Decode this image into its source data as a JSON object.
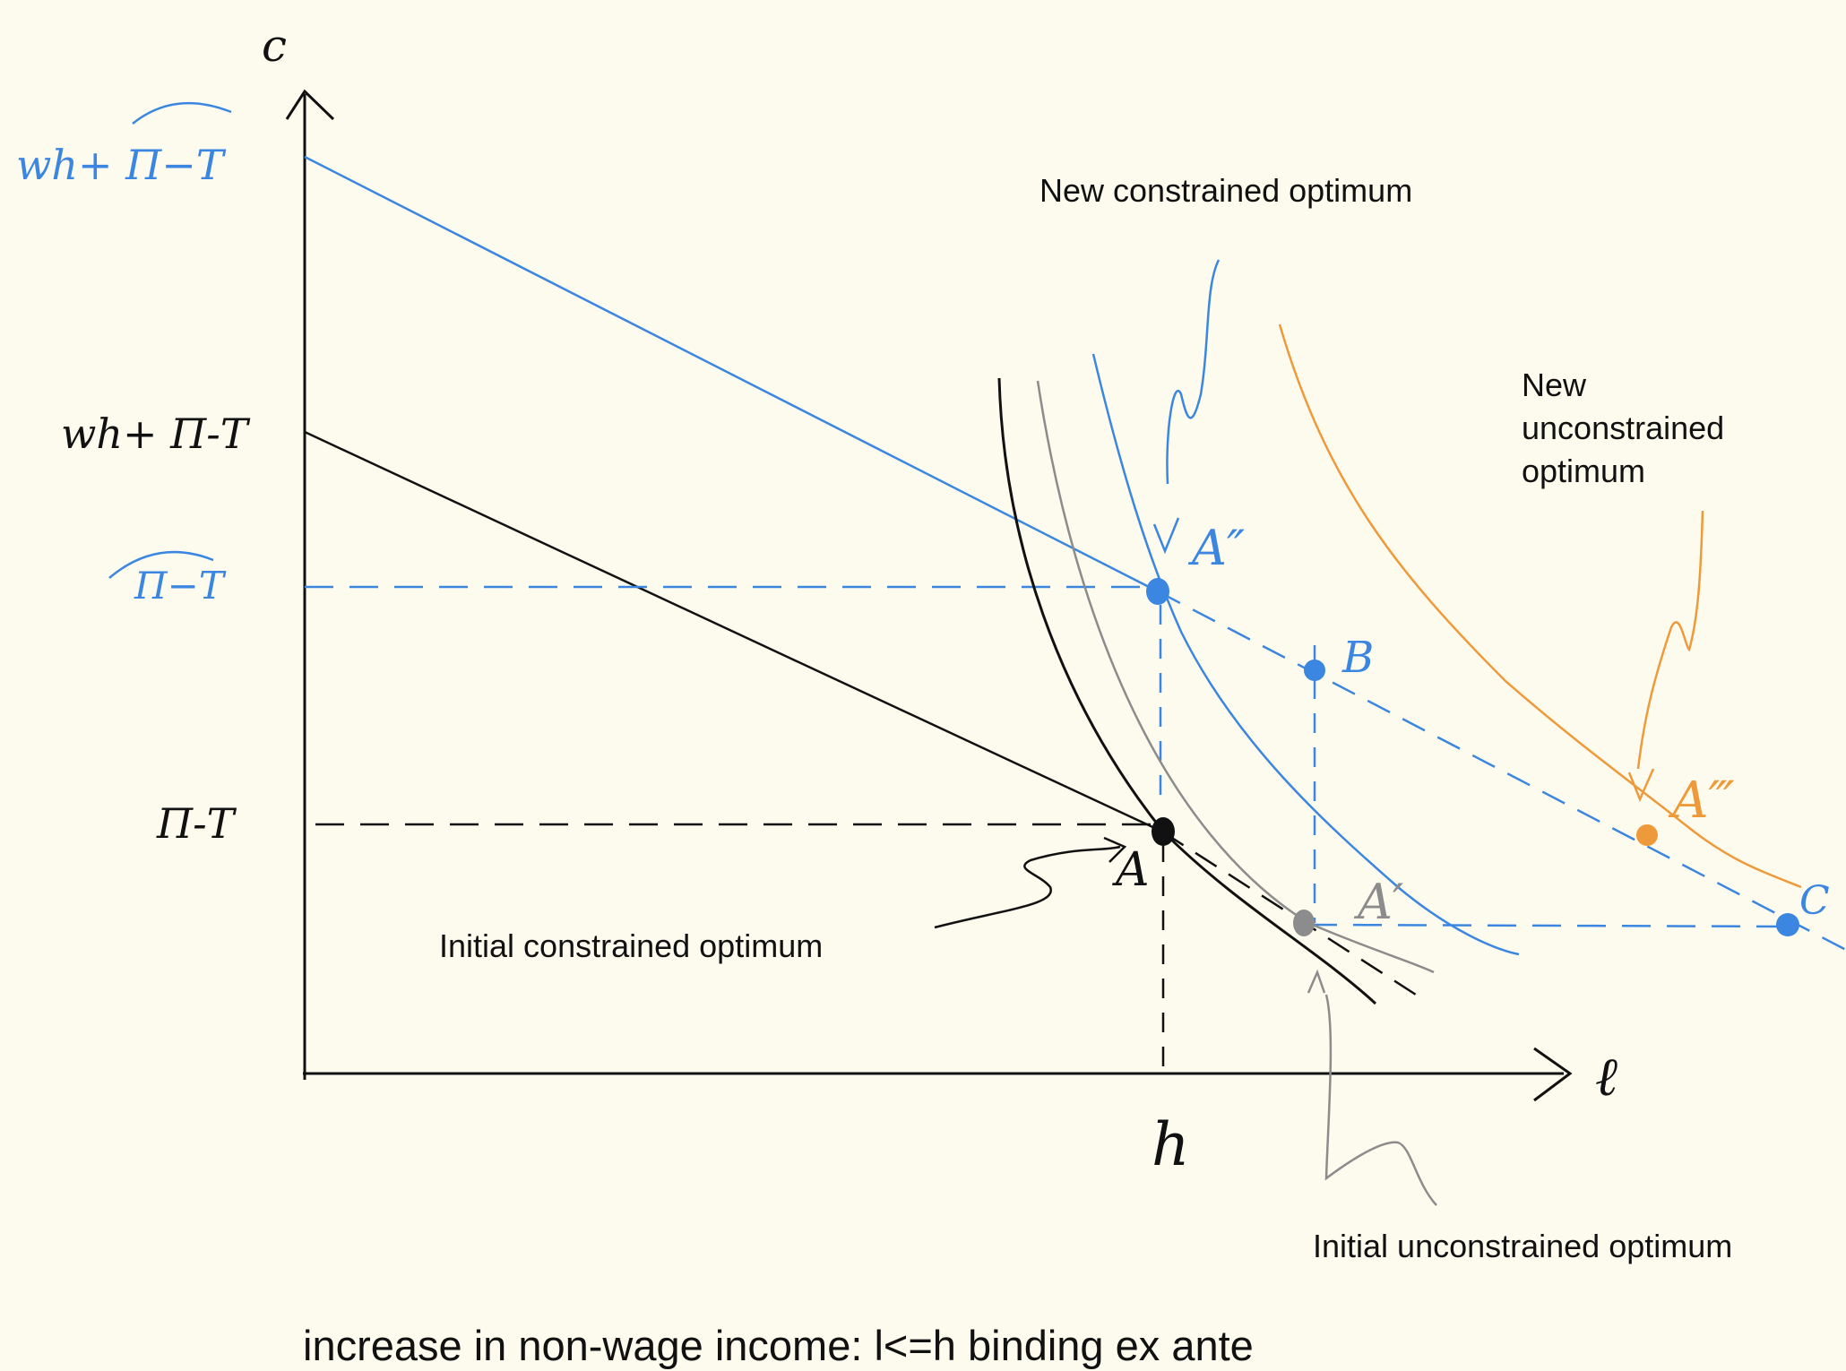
{
  "axes": {
    "y_label": "c",
    "x_label": "ℓ",
    "x_tick_h": "h"
  },
  "y_axis_labels": {
    "blue_top": "wh+ Π−T",
    "black_top": "wh+ Π-T",
    "blue_mid": "Π−T",
    "black_mid": "Π-T"
  },
  "point_labels": {
    "A": "A",
    "A_prime": "A′",
    "A_dprime": "A″",
    "A_tprime": "A‴",
    "B": "B",
    "C": "C"
  },
  "annotations": {
    "new_constrained": "New constrained optimum",
    "new_unconstrained_line1": "New",
    "new_unconstrained_line2": "unconstrained",
    "new_unconstrained_line3": "optimum",
    "initial_constrained": "Initial constrained optimum",
    "initial_unconstrained": "Initial unconstrained optimum"
  },
  "caption": "increase in non-wage income: l<=h binding ex ante",
  "colors": {
    "black": "#111111",
    "blue": "#3b86e0",
    "gray": "#8c8c8c",
    "orange": "#ef9a3a",
    "background": "#fdfbee"
  }
}
